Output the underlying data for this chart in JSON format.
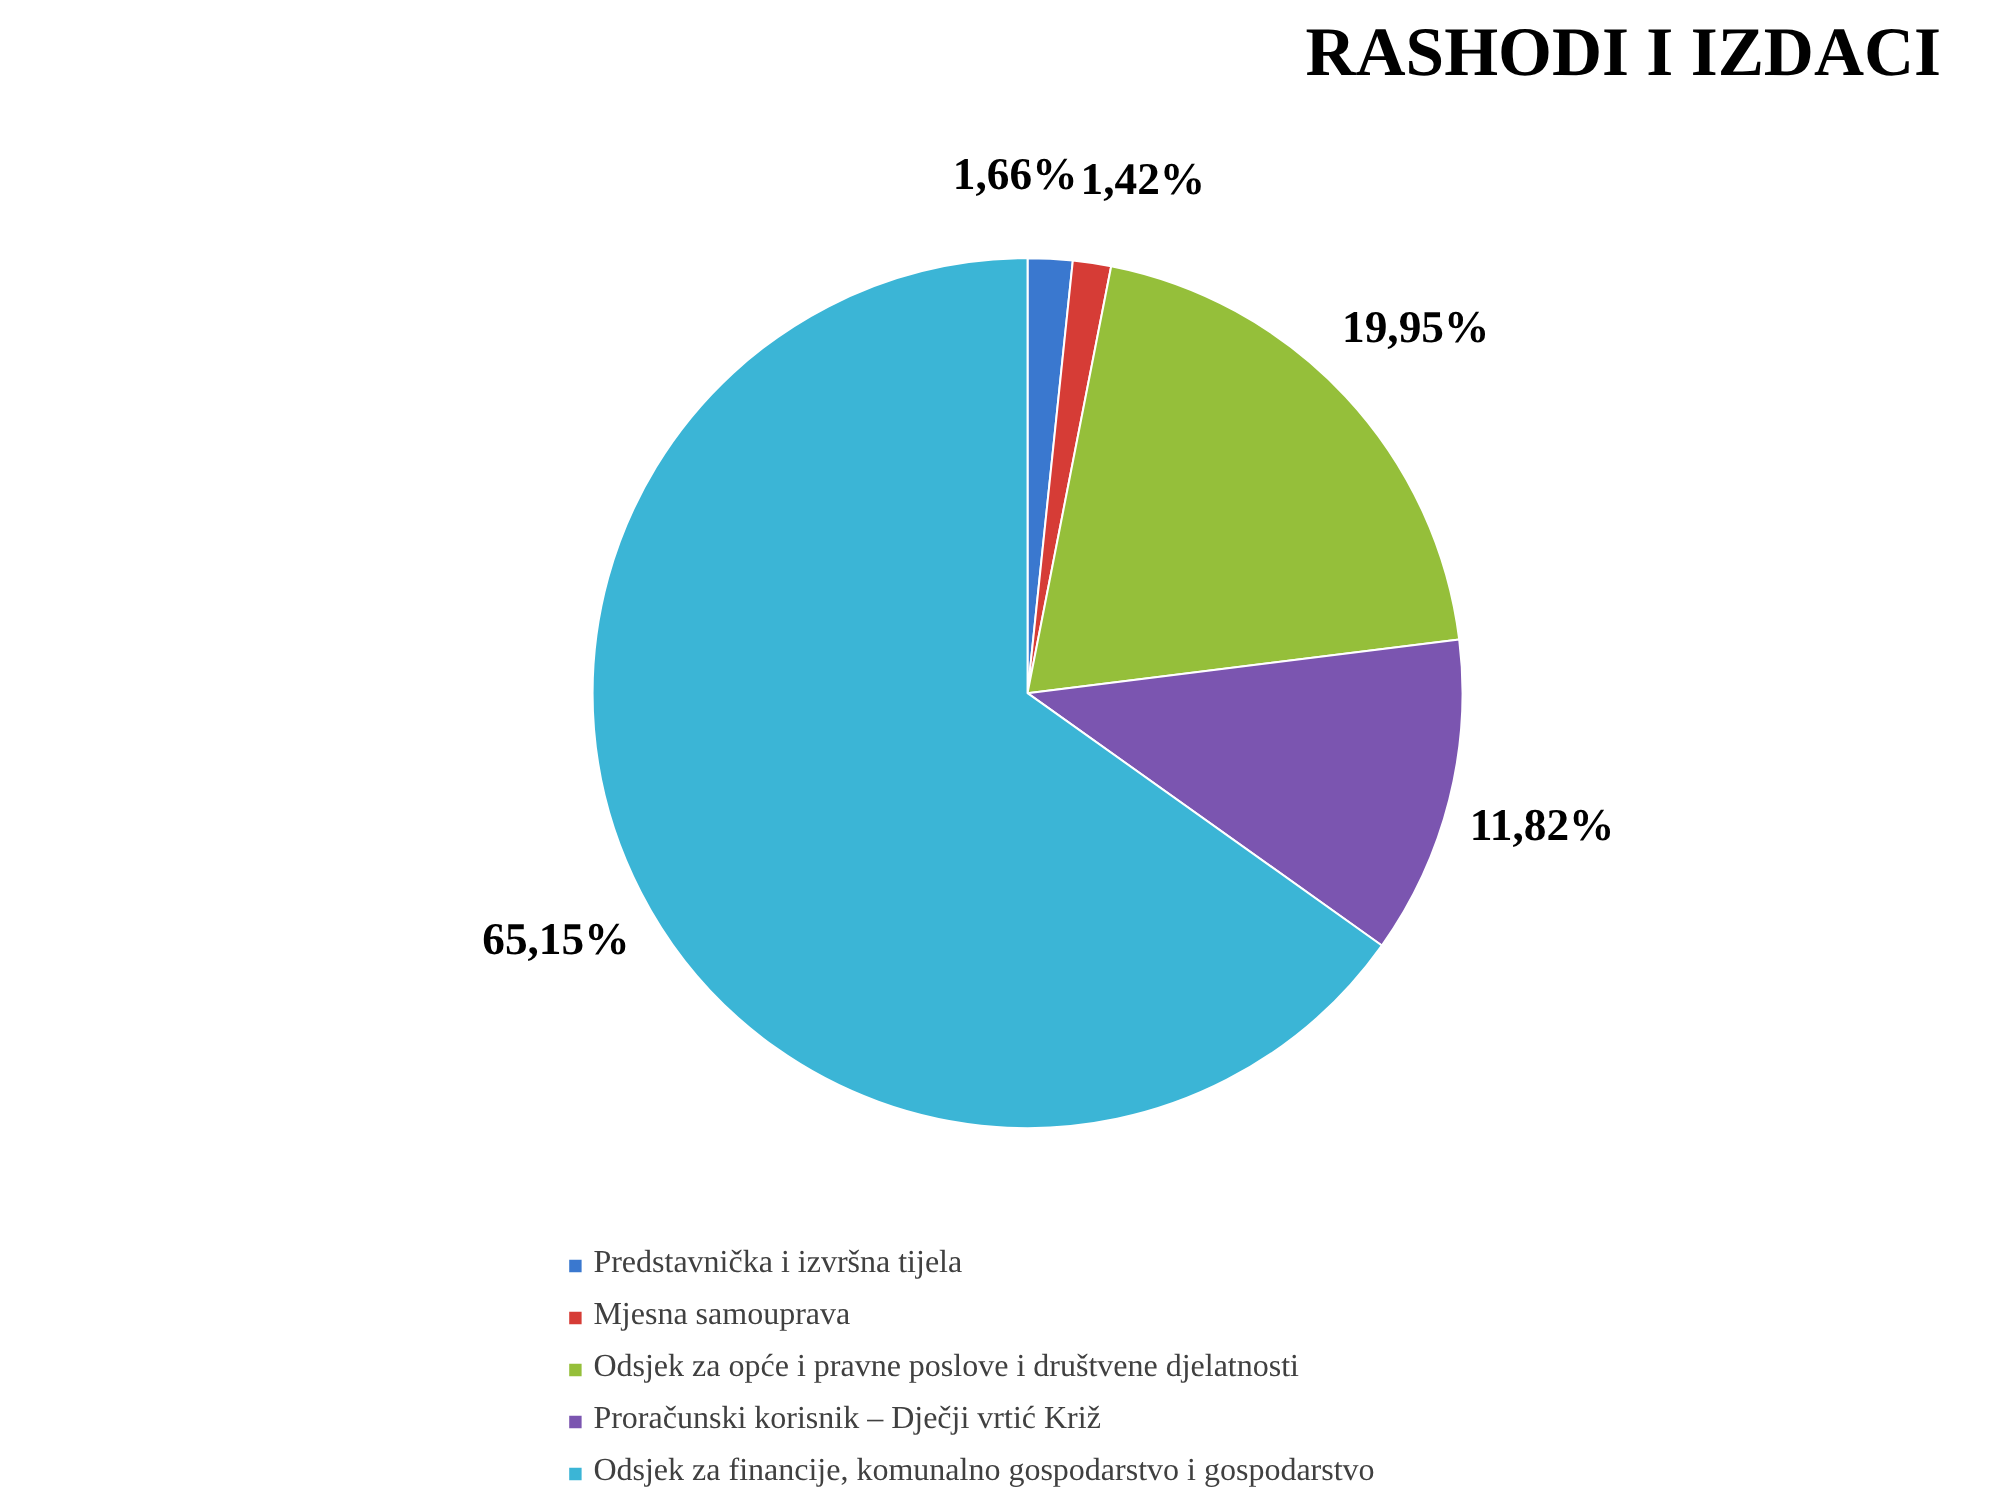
{
  "chart_data": {
    "type": "pie",
    "title": "RASHODI I IZDACI",
    "categories": [
      "Predstavnička i izvršna tijela",
      "Mjesna samouprava",
      "Odsjek za opće i pravne poslove i društvene djelatnosti",
      "Proračunski korisnik – Dječji vrtić Križ",
      "Odsjek za financije, komunalno gospodarstvo i gospodarstvo"
    ],
    "values": [
      1.66,
      1.42,
      19.95,
      11.82,
      65.15
    ],
    "colors": [
      "#3a78cf",
      "#d63c36",
      "#95bf3a",
      "#7b55b0",
      "#3bb5d6"
    ],
    "value_labels": [
      "1,66%",
      "1,42%",
      "19,95%",
      "11,82%",
      "65,15%"
    ],
    "legend": "bottom"
  }
}
